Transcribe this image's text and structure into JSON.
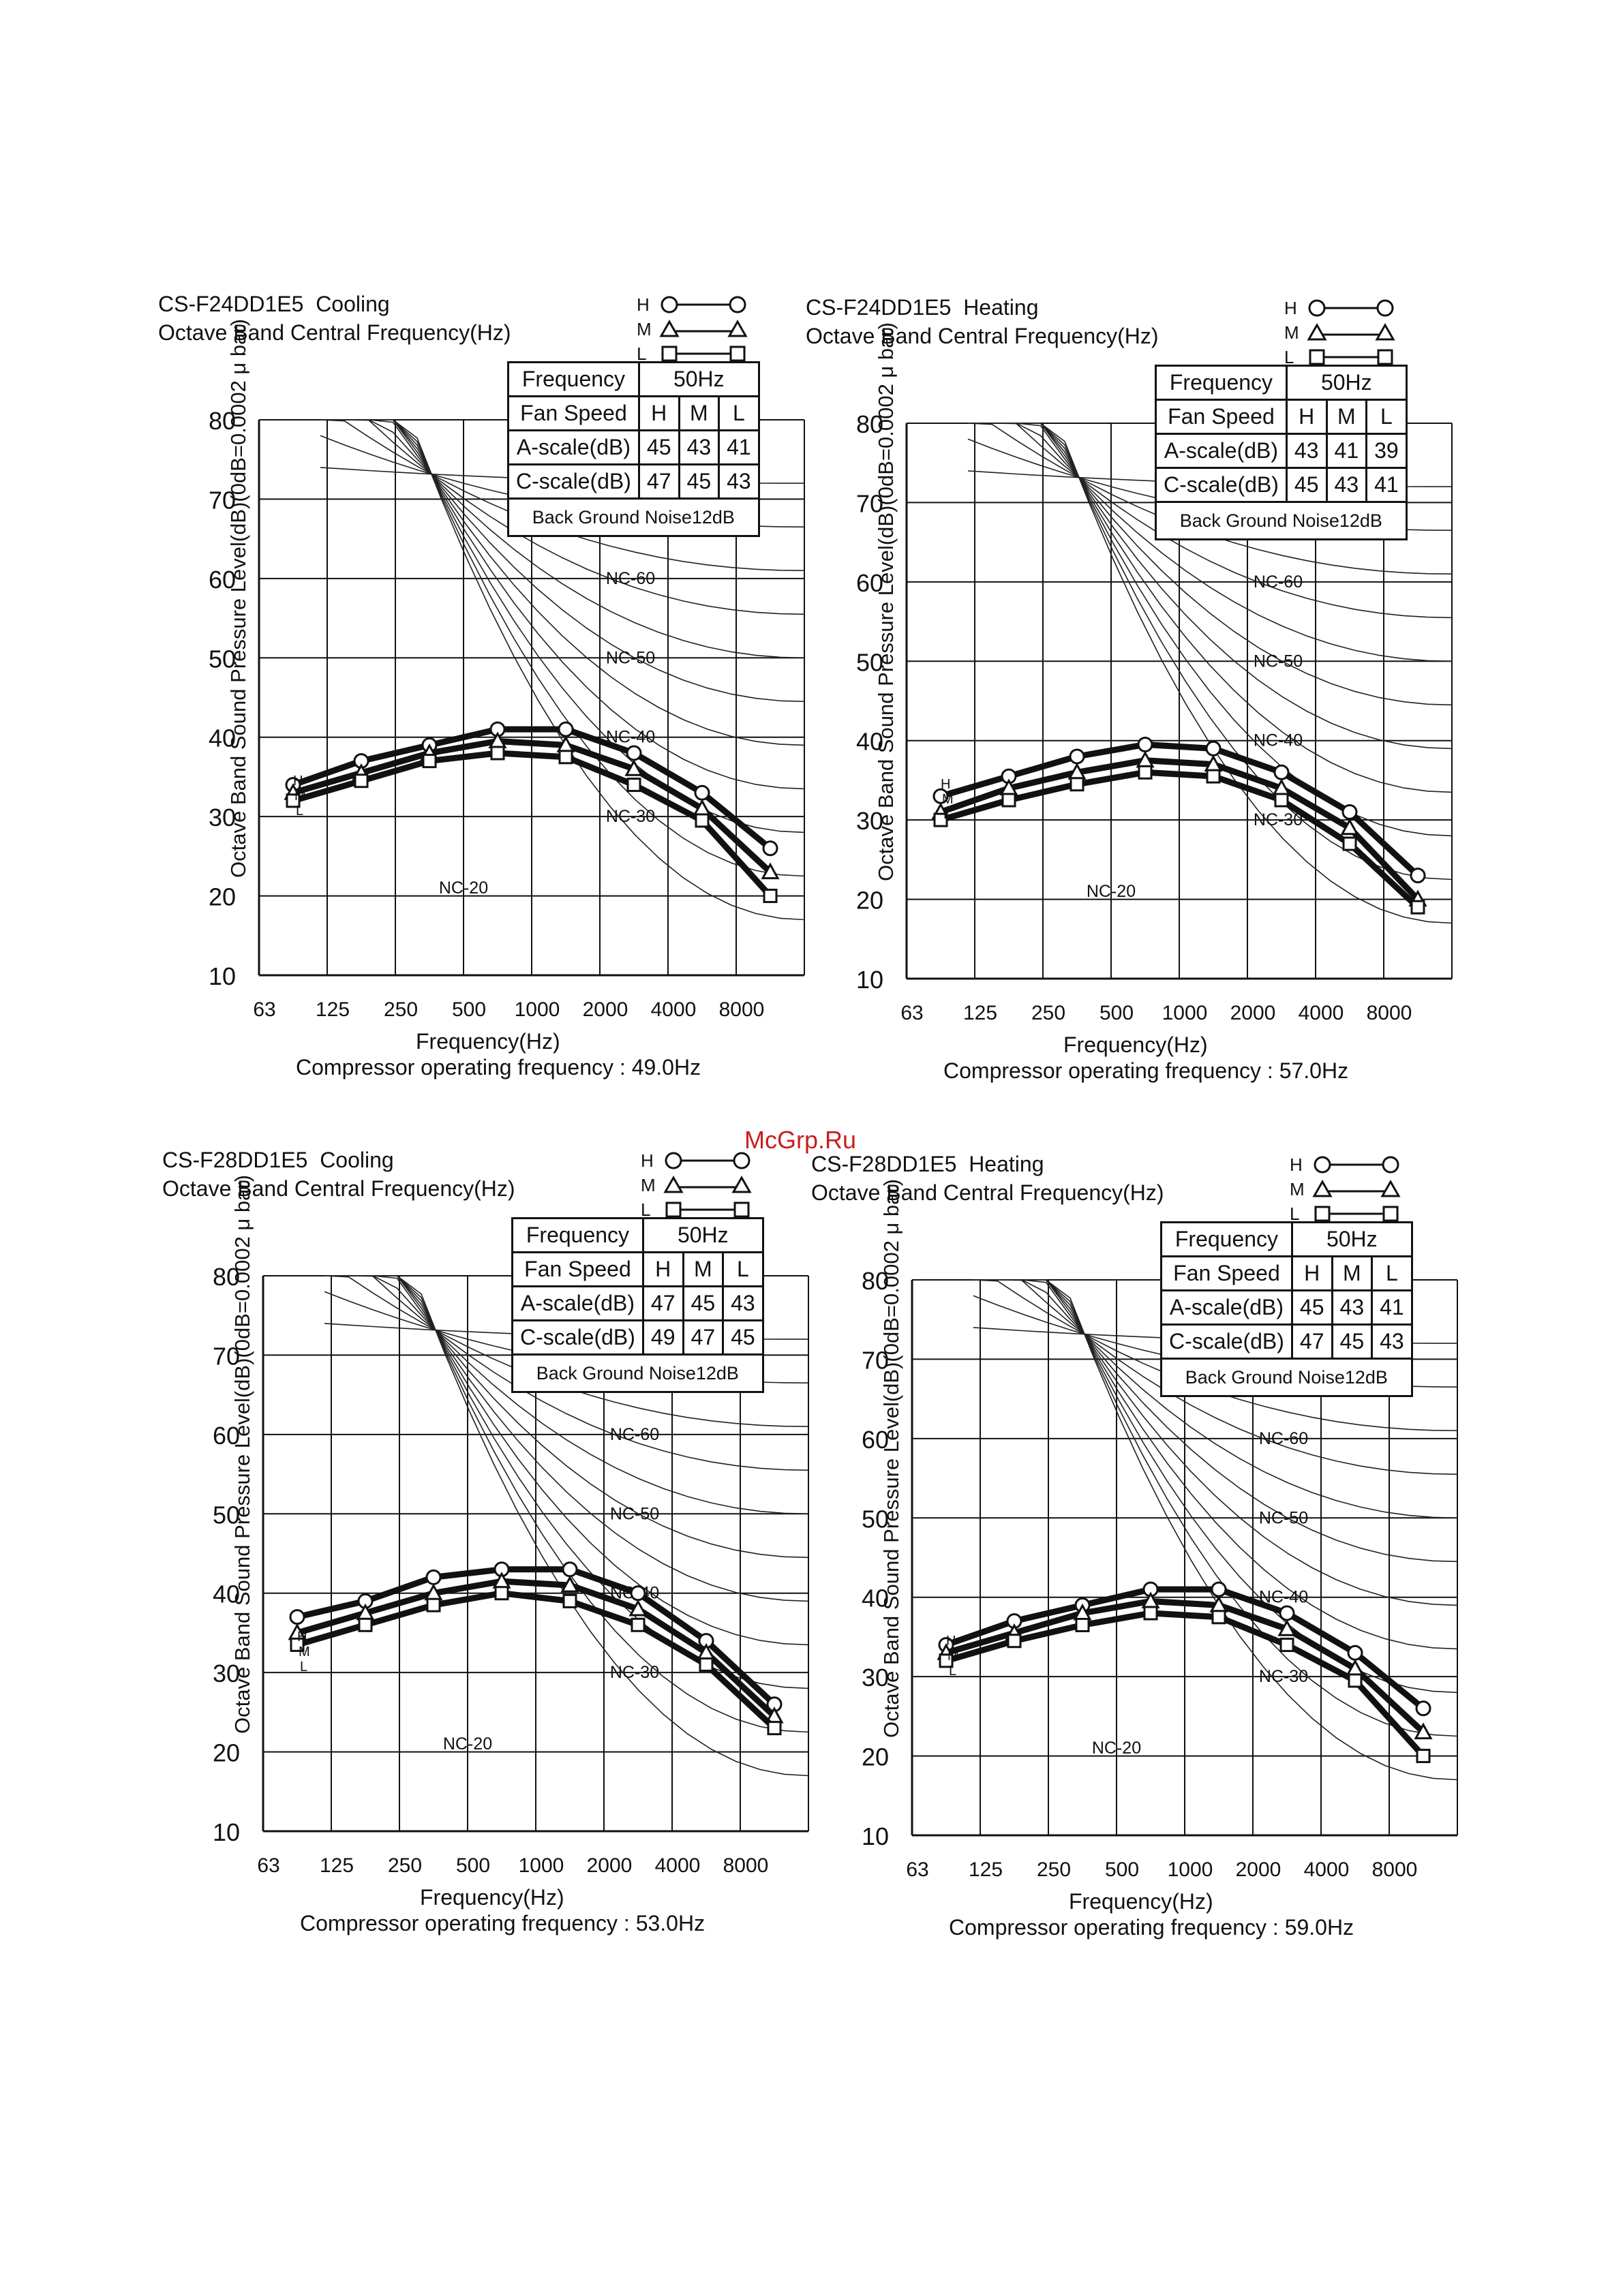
{
  "watermark": "McGrp.Ru",
  "legend_key": [
    {
      "code": "H",
      "marker": "circle"
    },
    {
      "code": "M",
      "marker": "triangle"
    },
    {
      "code": "L",
      "marker": "square"
    }
  ],
  "table_labels": {
    "frequency": "Frequency",
    "frequency_value": "50Hz",
    "fan_speed": "Fan Speed",
    "a_scale": "A-scale(dB)",
    "c_scale": "C-scale(dB)",
    "background": "Back Ground Noise12dB",
    "speeds": [
      "H",
      "M",
      "L"
    ]
  },
  "curve_labels": [
    "NC-60",
    "NC-50",
    "NC-40",
    "NC-30",
    "NC-20"
  ],
  "chart_data": [
    {
      "type": "line",
      "model": "CS-F24DD1E5",
      "mode": "Cooling",
      "subtitle": "Octave Band Central Frequency(Hz)",
      "ylabel": "Octave Band Sound Pressure Level(dB)(0dB=0.0002 μ bar)",
      "xlabel": "Frequency(Hz)",
      "categories": [
        "63",
        "125",
        "250",
        "500",
        "1000",
        "2000",
        "4000",
        "8000"
      ],
      "ylim": [
        10,
        80
      ],
      "yticks": [
        "80",
        "70",
        "60",
        "50",
        "40",
        "30",
        "20",
        "10"
      ],
      "series": [
        {
          "name": "H",
          "values": [
            34,
            37,
            39,
            41,
            41,
            38,
            33,
            26
          ]
        },
        {
          "name": "M",
          "values": [
            33,
            35.5,
            38,
            39.5,
            39,
            36,
            31,
            23
          ]
        },
        {
          "name": "L",
          "values": [
            32,
            34.5,
            37,
            38,
            37.5,
            34,
            29.5,
            20
          ]
        }
      ],
      "a_scale": [
        "45",
        "43",
        "41"
      ],
      "c_scale": [
        "47",
        "45",
        "43"
      ],
      "compressor": "Compressor operating frequency : 49.0Hz"
    },
    {
      "type": "line",
      "model": "CS-F24DD1E5",
      "mode": "Heating",
      "subtitle": "Octave Band Central Frequency(Hz)",
      "ylabel": "Octave Band Sound Pressure Level(dB)(0dB=0.0002 μ bar)",
      "xlabel": "Frequency(Hz)",
      "categories": [
        "63",
        "125",
        "250",
        "500",
        "1000",
        "2000",
        "4000",
        "8000"
      ],
      "ylim": [
        10,
        80
      ],
      "yticks": [
        "80",
        "70",
        "60",
        "50",
        "40",
        "30",
        "20",
        "10"
      ],
      "series": [
        {
          "name": "H",
          "values": [
            33,
            35.5,
            38,
            39.5,
            39,
            36,
            31,
            23
          ]
        },
        {
          "name": "M",
          "values": [
            31,
            34,
            36,
            37.5,
            37,
            34,
            29,
            20
          ]
        },
        {
          "name": "L",
          "values": [
            30,
            32.5,
            34.5,
            36,
            35.5,
            32.5,
            27,
            19
          ]
        }
      ],
      "a_scale": [
        "43",
        "41",
        "39"
      ],
      "c_scale": [
        "45",
        "43",
        "41"
      ],
      "compressor": "Compressor operating frequency : 57.0Hz"
    },
    {
      "type": "line",
      "model": "CS-F28DD1E5",
      "mode": "Cooling",
      "subtitle": "Octave Band Central Frequency(Hz)",
      "ylabel": "Octave Band Sound Pressure Level(dB)(0dB=0.0002 μ bar)",
      "xlabel": "Frequency(Hz)",
      "categories": [
        "63",
        "125",
        "250",
        "500",
        "1000",
        "2000",
        "4000",
        "8000"
      ],
      "ylim": [
        10,
        80
      ],
      "yticks": [
        "80",
        "70",
        "60",
        "50",
        "40",
        "30",
        "20",
        "10"
      ],
      "series": [
        {
          "name": "H",
          "values": [
            37,
            39,
            42,
            43,
            43,
            40,
            34,
            26
          ]
        },
        {
          "name": "M",
          "values": [
            35,
            37.5,
            40,
            41.5,
            41,
            38,
            32.5,
            24.5
          ]
        },
        {
          "name": "L",
          "values": [
            33.5,
            36,
            38.5,
            40,
            39,
            36,
            31,
            23
          ]
        }
      ],
      "a_scale": [
        "47",
        "45",
        "43"
      ],
      "c_scale": [
        "49",
        "47",
        "45"
      ],
      "compressor": "Compressor operating frequency : 53.0Hz"
    },
    {
      "type": "line",
      "model": "CS-F28DD1E5",
      "mode": "Heating",
      "subtitle": "Octave Band Central Frequency(Hz)",
      "ylabel": "Octave Band Sound Pressure Level(dB)(0dB=0.0002 μ bar)",
      "xlabel": "Frequency(Hz)",
      "categories": [
        "63",
        "125",
        "250",
        "500",
        "1000",
        "2000",
        "4000",
        "8000"
      ],
      "ylim": [
        10,
        80
      ],
      "yticks": [
        "80",
        "70",
        "60",
        "50",
        "40",
        "30",
        "20",
        "10"
      ],
      "series": [
        {
          "name": "H",
          "values": [
            34,
            37,
            39,
            41,
            41,
            38,
            33,
            26
          ]
        },
        {
          "name": "M",
          "values": [
            33,
            35.5,
            38,
            39.5,
            39,
            36,
            31,
            23
          ]
        },
        {
          "name": "L",
          "values": [
            32,
            34.5,
            36.5,
            38,
            37.5,
            34,
            29.5,
            20
          ]
        }
      ],
      "a_scale": [
        "45",
        "43",
        "41"
      ],
      "c_scale": [
        "47",
        "45",
        "43"
      ],
      "compressor": "Compressor operating frequency : 59.0Hz"
    }
  ]
}
